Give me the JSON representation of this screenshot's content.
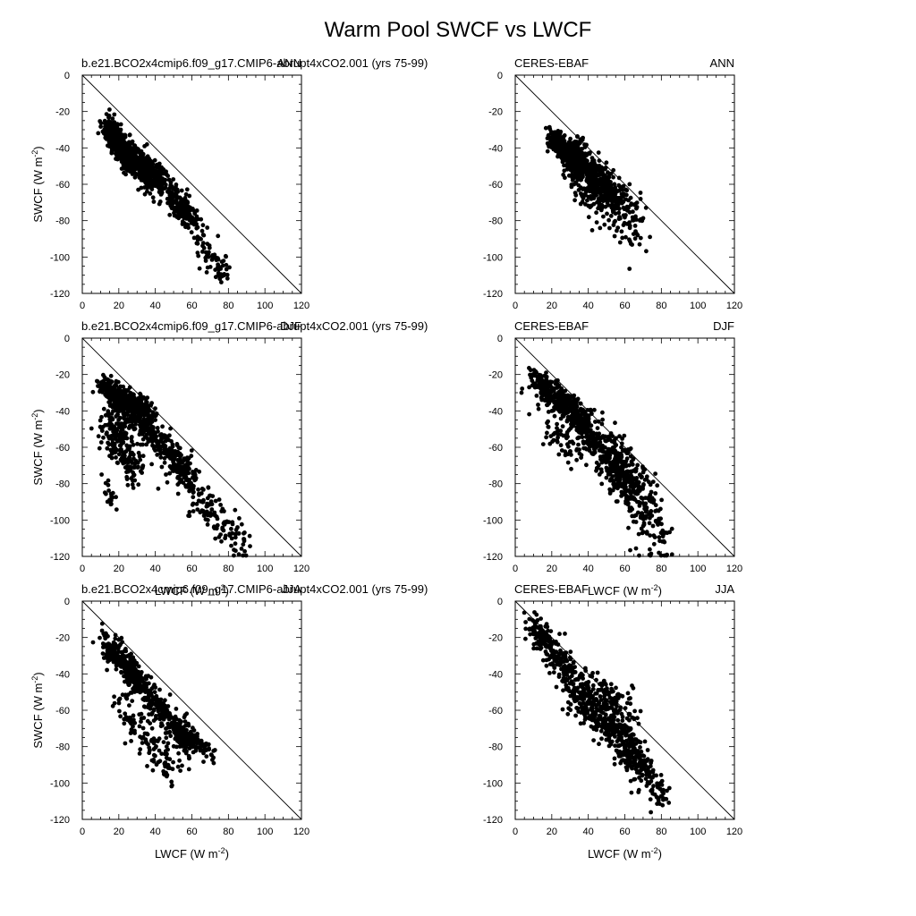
{
  "figure": {
    "title": "Warm Pool SWCF vs LWCF"
  },
  "chart_data": [
    {
      "type": "scatter",
      "left_label": "b.e21.BCO2x4cmip6.f09_g17.CMIP6-abrupt4xCO2.001 (yrs 75-99)",
      "right_label": "ANN",
      "xlabel": "",
      "ylabel": "SWCF (W m-2)",
      "xlim": [
        0,
        120
      ],
      "ylim": [
        -120,
        0
      ],
      "x_ticks": [
        "0",
        "20",
        "40",
        "60",
        "80",
        "100",
        "120"
      ],
      "y_ticks": [
        "0",
        "-20",
        "-40",
        "-60",
        "-80",
        "-100",
        "-120"
      ],
      "reference_line": "y = -x",
      "point_clusters": [
        {
          "x": [
            14,
            26
          ],
          "y": [
            -28,
            -48
          ],
          "spread": 3.5,
          "n": 420
        },
        {
          "x": [
            22,
            42
          ],
          "y": [
            -40,
            -58
          ],
          "spread": 4,
          "n": 300
        },
        {
          "x": [
            35,
            60
          ],
          "y": [
            -52,
            -78
          ],
          "spread": 4,
          "n": 230
        },
        {
          "x": [
            55,
            78
          ],
          "y": [
            -74,
            -110
          ],
          "spread": 4,
          "n": 110
        }
      ]
    },
    {
      "type": "scatter",
      "left_label": "CERES-EBAF",
      "right_label": "ANN",
      "xlabel": "",
      "ylabel": "",
      "xlim": [
        0,
        120
      ],
      "ylim": [
        -120,
        0
      ],
      "x_ticks": [
        "0",
        "20",
        "40",
        "60",
        "80",
        "100",
        "120"
      ],
      "y_ticks": [
        "0",
        "-20",
        "-40",
        "-60",
        "-80",
        "-100",
        "-120"
      ],
      "reference_line": "y = -x",
      "point_clusters": [
        {
          "x": [
            20,
            35
          ],
          "y": [
            -35,
            -46
          ],
          "spread": 3,
          "n": 420
        },
        {
          "x": [
            30,
            55
          ],
          "y": [
            -44,
            -68
          ],
          "spread": 5,
          "n": 420
        },
        {
          "x": [
            40,
            70
          ],
          "y": [
            -58,
            -85
          ],
          "spread": 8,
          "n": 180
        },
        {
          "x": [
            28,
            40
          ],
          "y": [
            -52,
            -68
          ],
          "spread": 4,
          "n": 30
        }
      ]
    },
    {
      "type": "scatter",
      "left_label": "b.e21.BCO2x4cmip6.f09_g17.CMIP6-abrupt4xCO2.001 (yrs 75-99)",
      "right_label": "DJF",
      "xlabel": "LWCF (W m-2)",
      "ylabel": "SWCF (W m-2)",
      "xlim": [
        0,
        120
      ],
      "ylim": [
        -120,
        0
      ],
      "x_ticks": [
        "0",
        "20",
        "40",
        "60",
        "80",
        "100",
        "120"
      ],
      "y_ticks": [
        "0",
        "-20",
        "-40",
        "-60",
        "-80",
        "-100",
        "-120"
      ],
      "reference_line": "y = -x",
      "point_clusters": [
        {
          "x": [
            10,
            38
          ],
          "y": [
            -25,
            -42
          ],
          "spread": 3,
          "n": 300
        },
        {
          "x": [
            14,
            60
          ],
          "y": [
            -28,
            -75
          ],
          "spread": 4,
          "n": 380
        },
        {
          "x": [
            12,
            30
          ],
          "y": [
            -45,
            -72
          ],
          "spread": 6,
          "n": 200
        },
        {
          "x": [
            45,
            88
          ],
          "y": [
            -65,
            -115
          ],
          "spread": 5,
          "n": 200
        },
        {
          "x": [
            12,
            18
          ],
          "y": [
            -80,
            -92
          ],
          "spread": 3,
          "n": 20
        }
      ]
    },
    {
      "type": "scatter",
      "left_label": "CERES-EBAF",
      "right_label": "DJF",
      "xlabel": "LWCF (W m-2)",
      "ylabel": "",
      "xlim": [
        0,
        120
      ],
      "ylim": [
        -120,
        0
      ],
      "x_ticks": [
        "0",
        "20",
        "40",
        "60",
        "80",
        "100",
        "120"
      ],
      "y_ticks": [
        "0",
        "-20",
        "-40",
        "-60",
        "-80",
        "-100",
        "-120"
      ],
      "reference_line": "y = -x",
      "point_clusters": [
        {
          "x": [
            10,
            40
          ],
          "y": [
            -22,
            -48
          ],
          "spread": 4,
          "n": 400
        },
        {
          "x": [
            35,
            65
          ],
          "y": [
            -45,
            -85
          ],
          "spread": 6,
          "n": 300
        },
        {
          "x": [
            55,
            80
          ],
          "y": [
            -60,
            -115
          ],
          "spread": 8,
          "n": 250
        },
        {
          "x": [
            15,
            35
          ],
          "y": [
            -45,
            -65
          ],
          "spread": 5,
          "n": 60
        }
      ]
    },
    {
      "type": "scatter",
      "left_label": "b.e21.BCO2x4cmip6.f09_g17.CMIP6-abrupt4xCO2.001 (yrs 75-99)",
      "right_label": "JJA",
      "xlabel": "LWCF (W m-2)",
      "ylabel": "SWCF (W m-2)",
      "xlim": [
        0,
        120
      ],
      "ylim": [
        -120,
        0
      ],
      "x_ticks": [
        "0",
        "20",
        "40",
        "60",
        "80",
        "100",
        "120"
      ],
      "y_ticks": [
        "0",
        "-20",
        "-40",
        "-60",
        "-80",
        "-100",
        "-120"
      ],
      "reference_line": "y = -x",
      "point_clusters": [
        {
          "x": [
            12,
            30
          ],
          "y": [
            -22,
            -42
          ],
          "spread": 4,
          "n": 200
        },
        {
          "x": [
            25,
            60
          ],
          "y": [
            -38,
            -80
          ],
          "spread": 4,
          "n": 350
        },
        {
          "x": [
            20,
            50
          ],
          "y": [
            -55,
            -95
          ],
          "spread": 5,
          "n": 120
        },
        {
          "x": [
            55,
            72
          ],
          "y": [
            -72,
            -86
          ],
          "spread": 3,
          "n": 80
        }
      ]
    },
    {
      "type": "scatter",
      "left_label": "CERES-EBAF",
      "right_label": "JJA",
      "xlabel": "LWCF (W m-2)",
      "ylabel": "",
      "xlim": [
        0,
        120
      ],
      "ylim": [
        -120,
        0
      ],
      "x_ticks": [
        "0",
        "20",
        "40",
        "60",
        "80",
        "100",
        "120"
      ],
      "y_ticks": [
        "0",
        "-20",
        "-40",
        "-60",
        "-80",
        "-100",
        "-120"
      ],
      "reference_line": "y = -x",
      "point_clusters": [
        {
          "x": [
            9,
            30
          ],
          "y": [
            -12,
            -40
          ],
          "spread": 4,
          "n": 200
        },
        {
          "x": [
            30,
            70
          ],
          "y": [
            -45,
            -90
          ],
          "spread": 6,
          "n": 400
        },
        {
          "x": [
            60,
            82
          ],
          "y": [
            -80,
            -108
          ],
          "spread": 5,
          "n": 120
        },
        {
          "x": [
            35,
            65
          ],
          "y": [
            -45,
            -60
          ],
          "spread": 5,
          "n": 120
        }
      ]
    }
  ]
}
